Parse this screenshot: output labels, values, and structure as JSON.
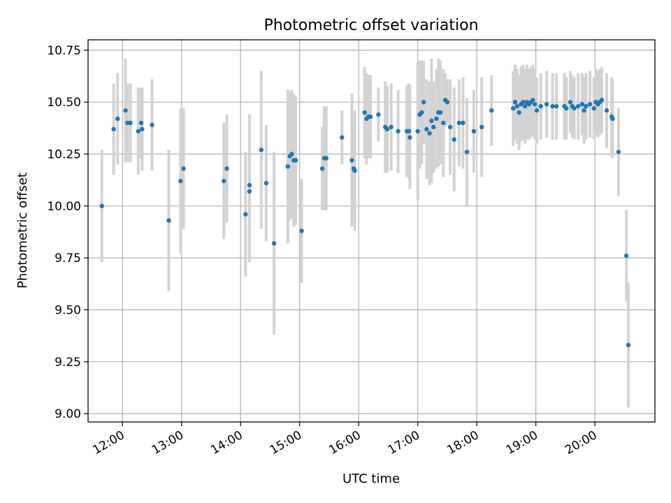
{
  "chart_data": {
    "type": "scatter",
    "title": "Photometric offset variation",
    "xlabel": "UTC time",
    "ylabel": "Photometric offset",
    "xlim": [
      "11:25",
      "21:01"
    ],
    "ylim": [
      8.96,
      10.8
    ],
    "grid": true,
    "x_ticks": [
      "12:00",
      "13:00",
      "14:00",
      "15:00",
      "16:00",
      "17:00",
      "18:00",
      "19:00",
      "20:00"
    ],
    "y_ticks": [
      "9.00",
      "9.25",
      "9.50",
      "9.75",
      "10.00",
      "10.25",
      "10.50",
      "10.75"
    ],
    "colors": {
      "marker": "#1f77b4",
      "errorbar": "#d3d3d3"
    },
    "series": [
      {
        "x": [
          "11:39",
          "11:51",
          "11:55",
          "12:03",
          "12:05",
          "12:08",
          "12:16",
          "12:19",
          "12:20",
          "12:30",
          "12:47",
          "12:59",
          "13:02",
          "13:43",
          "13:46",
          "14:05",
          "14:09",
          "14:09",
          "14:21",
          "14:26",
          "14:34",
          "14:48",
          "14:50",
          "14:52",
          "14:54",
          "14:56",
          "15:02",
          "15:23",
          "15:25",
          "15:27",
          "15:43",
          "15:53",
          "15:55",
          "15:56",
          "16:06",
          "16:08",
          "16:10",
          "16:12",
          "16:20",
          "16:27",
          "16:29",
          "16:33",
          "16:40",
          "16:49",
          "16:51",
          "16:52",
          "17:00",
          "17:02",
          "17:04",
          "17:06",
          "17:09",
          "17:12",
          "17:14",
          "17:16",
          "17:19",
          "17:21",
          "17:23",
          "17:26",
          "17:28",
          "17:30",
          "17:33",
          "17:37",
          "17:42",
          "17:46",
          "17:50",
          "17:57",
          "18:05",
          "18:15",
          "18:37",
          "18:39",
          "18:41",
          "18:43",
          "18:45",
          "18:47",
          "18:49",
          "18:51",
          "18:53",
          "18:55",
          "18:57",
          "18:59",
          "19:01",
          "19:05",
          "19:11",
          "19:17",
          "19:21",
          "19:29",
          "19:31",
          "19:35",
          "19:37",
          "19:39",
          "19:43",
          "19:47",
          "19:49",
          "19:51",
          "19:55",
          "19:59",
          "20:01",
          "20:03",
          "20:05",
          "20:07",
          "20:12",
          "20:17",
          "20:18",
          "20:24",
          "20:32",
          "20:34"
        ],
        "y": [
          10.0,
          10.37,
          10.42,
          10.46,
          10.4,
          10.4,
          10.36,
          10.4,
          10.37,
          10.39,
          9.93,
          10.12,
          10.18,
          10.12,
          10.18,
          9.96,
          10.1,
          10.07,
          10.27,
          10.11,
          9.82,
          10.19,
          10.24,
          10.25,
          10.22,
          10.22,
          9.88,
          10.18,
          10.23,
          10.23,
          10.33,
          10.22,
          10.18,
          10.17,
          10.45,
          10.42,
          10.43,
          10.43,
          10.44,
          10.38,
          10.37,
          10.38,
          10.36,
          10.36,
          10.36,
          10.33,
          10.36,
          10.44,
          10.45,
          10.5,
          10.37,
          10.35,
          10.41,
          10.38,
          10.42,
          10.45,
          10.45,
          10.4,
          10.51,
          10.5,
          10.38,
          10.32,
          10.4,
          10.4,
          10.26,
          10.36,
          10.38,
          10.46,
          10.47,
          10.5,
          10.48,
          10.45,
          10.49,
          10.5,
          10.48,
          10.5,
          10.49,
          10.5,
          10.51,
          10.49,
          10.46,
          10.48,
          10.49,
          10.48,
          10.48,
          10.48,
          10.47,
          10.5,
          10.48,
          10.47,
          10.48,
          10.49,
          10.46,
          10.48,
          10.49,
          10.47,
          10.5,
          10.49,
          10.5,
          10.51,
          10.46,
          10.43,
          10.42,
          10.26,
          9.76,
          9.33
        ],
        "yerr": [
          0.27,
          0.22,
          0.22,
          0.25,
          0.19,
          0.19,
          0.21,
          0.17,
          0.2,
          0.22,
          0.34,
          0.35,
          0.29,
          0.28,
          0.26,
          0.3,
          0.34,
          0.34,
          0.38,
          0.28,
          0.44,
          0.37,
          0.31,
          0.31,
          0.32,
          0.31,
          0.25,
          0.2,
          0.25,
          0.25,
          0.13,
          0.32,
          0.21,
          0.29,
          0.22,
          0.22,
          0.2,
          0.2,
          0.13,
          0.22,
          0.21,
          0.21,
          0.2,
          0.22,
          0.23,
          0.25,
          0.33,
          0.26,
          0.25,
          0.2,
          0.24,
          0.25,
          0.3,
          0.22,
          0.24,
          0.26,
          0.25,
          0.26,
          0.13,
          0.11,
          0.23,
          0.25,
          0.21,
          0.22,
          0.26,
          0.2,
          0.24,
          0.17,
          0.18,
          0.18,
          0.18,
          0.18,
          0.18,
          0.18,
          0.18,
          0.18,
          0.17,
          0.17,
          0.17,
          0.17,
          0.16,
          0.16,
          0.16,
          0.16,
          0.16,
          0.16,
          0.15,
          0.15,
          0.15,
          0.15,
          0.16,
          0.15,
          0.16,
          0.16,
          0.16,
          0.15,
          0.16,
          0.16,
          0.16,
          0.16,
          0.18,
          0.19,
          0.19,
          0.21,
          0.22,
          0.3
        ]
      }
    ]
  }
}
